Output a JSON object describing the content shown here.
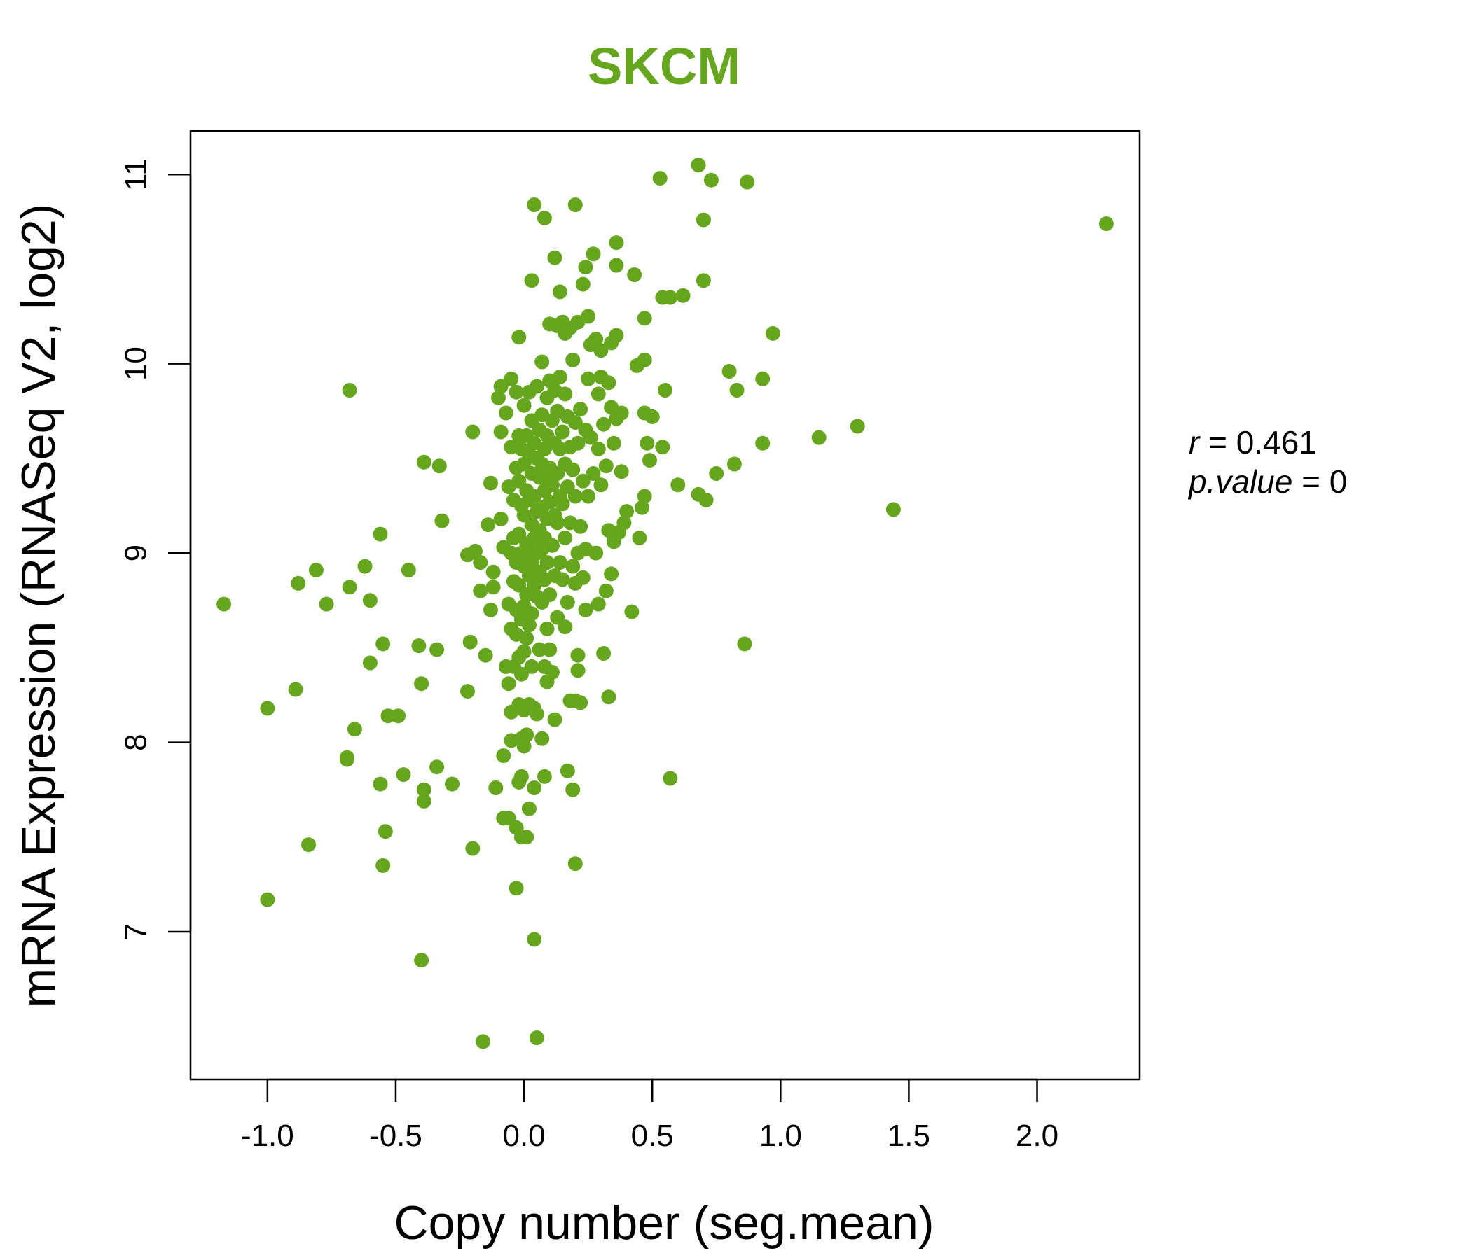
{
  "chart_data": {
    "type": "scatter",
    "title": "SKCM",
    "xlabel": "Copy number (seg.mean)",
    "ylabel": "mRNA Expression (RNASeq V2, log2)",
    "xlim": [
      -1.3,
      2.4
    ],
    "ylim": [
      6.22,
      11.23
    ],
    "x_ticks": [
      -1.0,
      -0.5,
      0.0,
      0.5,
      1.0,
      1.5,
      2.0
    ],
    "x_tick_labels": [
      "-1.0",
      "-0.5",
      "0.0",
      "0.5",
      "1.0",
      "1.5",
      "2.0"
    ],
    "y_ticks": [
      7,
      8,
      9,
      10,
      11
    ],
    "y_tick_labels": [
      "7",
      "8",
      "9",
      "10",
      "11"
    ],
    "stats": {
      "r_label": "r",
      "r_value": "0.461",
      "p_label": "p.value",
      "p_value": "0"
    },
    "color": "#66a61e",
    "points": [
      [
        -1.17,
        8.73
      ],
      [
        -1.0,
        8.18
      ],
      [
        -1.0,
        7.17
      ],
      [
        -0.89,
        8.28
      ],
      [
        -0.88,
        8.84
      ],
      [
        -0.84,
        7.46
      ],
      [
        -0.81,
        8.91
      ],
      [
        -0.77,
        8.73
      ],
      [
        -0.68,
        8.82
      ],
      [
        -0.68,
        9.86
      ],
      [
        -0.69,
        7.92
      ],
      [
        -0.69,
        7.91
      ],
      [
        -0.66,
        8.07
      ],
      [
        -0.62,
        8.93
      ],
      [
        -0.6,
        8.75
      ],
      [
        -0.6,
        8.42
      ],
      [
        -0.56,
        9.1
      ],
      [
        -0.56,
        7.78
      ],
      [
        -0.55,
        8.52
      ],
      [
        -0.55,
        7.35
      ],
      [
        -0.53,
        8.14
      ],
      [
        -0.54,
        7.53
      ],
      [
        -0.49,
        8.14
      ],
      [
        -0.47,
        7.83
      ],
      [
        -0.45,
        8.91
      ],
      [
        -0.41,
        8.51
      ],
      [
        -0.4,
        8.31
      ],
      [
        -0.39,
        9.48
      ],
      [
        -0.39,
        7.75
      ],
      [
        -0.39,
        7.69
      ],
      [
        -0.4,
        6.85
      ],
      [
        -0.34,
        8.49
      ],
      [
        -0.33,
        9.46
      ],
      [
        -0.32,
        9.17
      ],
      [
        -0.34,
        7.87
      ],
      [
        -0.28,
        7.78
      ],
      [
        -0.22,
        8.99
      ],
      [
        -0.22,
        8.27
      ],
      [
        -0.2,
        9.64
      ],
      [
        -0.21,
        8.53
      ],
      [
        -0.19,
        9.01
      ],
      [
        -0.2,
        7.44
      ],
      [
        -0.17,
        8.95
      ],
      [
        -0.17,
        8.8
      ],
      [
        -0.15,
        8.46
      ],
      [
        -0.16,
        6.42
      ],
      [
        -0.14,
        9.15
      ],
      [
        -0.13,
        9.37
      ],
      [
        -0.13,
        8.7
      ],
      [
        -0.12,
        8.9
      ],
      [
        -0.12,
        8.82
      ],
      [
        -0.11,
        7.76
      ],
      [
        -0.1,
        9.82
      ],
      [
        -0.09,
        9.88
      ],
      [
        -0.09,
        9.64
      ],
      [
        -0.09,
        9.18
      ],
      [
        -0.08,
        9.03
      ],
      [
        -0.08,
        7.93
      ],
      [
        -0.08,
        7.6
      ],
      [
        -0.07,
        9.74
      ],
      [
        -0.07,
        8.4
      ],
      [
        -0.06,
        9.35
      ],
      [
        -0.06,
        8.73
      ],
      [
        -0.06,
        7.6
      ],
      [
        -0.06,
        8.31
      ],
      [
        -0.05,
        9.92
      ],
      [
        -0.05,
        9.56
      ],
      [
        -0.05,
        9.0
      ],
      [
        -0.05,
        8.6
      ],
      [
        -0.05,
        8.16
      ],
      [
        -0.05,
        8.01
      ],
      [
        -0.04,
        9.28
      ],
      [
        -0.04,
        9.08
      ],
      [
        -0.04,
        8.85
      ],
      [
        -0.04,
        8.4
      ],
      [
        -0.03,
        9.85
      ],
      [
        -0.03,
        9.45
      ],
      [
        -0.03,
        8.95
      ],
      [
        -0.03,
        8.7
      ],
      [
        -0.03,
        8.57
      ],
      [
        -0.03,
        7.55
      ],
      [
        -0.03,
        7.23
      ],
      [
        -0.02,
        10.14
      ],
      [
        -0.02,
        9.62
      ],
      [
        -0.02,
        9.38
      ],
      [
        -0.02,
        9.1
      ],
      [
        -0.02,
        8.83
      ],
      [
        -0.02,
        8.45
      ],
      [
        -0.02,
        8.2
      ],
      [
        -0.02,
        7.79
      ],
      [
        -0.01,
        9.55
      ],
      [
        -0.01,
        9.25
      ],
      [
        -0.01,
        9.0
      ],
      [
        -0.01,
        8.65
      ],
      [
        -0.01,
        8.36
      ],
      [
        -0.01,
        8.02
      ],
      [
        -0.01,
        7.82
      ],
      [
        -0.01,
        7.5
      ],
      [
        0.0,
        9.78
      ],
      [
        0.0,
        9.47
      ],
      [
        0.0,
        9.2
      ],
      [
        0.0,
        8.93
      ],
      [
        0.0,
        8.72
      ],
      [
        0.0,
        8.48
      ],
      [
        0.0,
        8.17
      ],
      [
        0.0,
        7.98
      ],
      [
        0.01,
        9.62
      ],
      [
        0.01,
        9.33
      ],
      [
        0.01,
        9.05
      ],
      [
        0.01,
        8.78
      ],
      [
        0.01,
        8.55
      ],
      [
        0.01,
        8.04
      ],
      [
        0.01,
        7.5
      ],
      [
        0.02,
        9.85
      ],
      [
        0.02,
        9.52
      ],
      [
        0.02,
        9.28
      ],
      [
        0.02,
        9.02
      ],
      [
        0.02,
        8.88
      ],
      [
        0.02,
        8.62
      ],
      [
        0.02,
        8.2
      ],
      [
        0.02,
        7.65
      ],
      [
        0.03,
        10.44
      ],
      [
        0.03,
        9.7
      ],
      [
        0.03,
        9.42
      ],
      [
        0.03,
        9.15
      ],
      [
        0.03,
        8.95
      ],
      [
        0.03,
        8.68
      ],
      [
        0.03,
        8.4
      ],
      [
        0.04,
        10.84
      ],
      [
        0.04,
        9.58
      ],
      [
        0.04,
        9.3
      ],
      [
        0.04,
        9.08
      ],
      [
        0.04,
        8.83
      ],
      [
        0.04,
        8.18
      ],
      [
        0.04,
        7.76
      ],
      [
        0.04,
        6.96
      ],
      [
        0.05,
        9.88
      ],
      [
        0.05,
        9.5
      ],
      [
        0.05,
        9.22
      ],
      [
        0.05,
        9.0
      ],
      [
        0.05,
        8.77
      ],
      [
        0.05,
        8.15
      ],
      [
        0.05,
        6.44
      ],
      [
        0.06,
        9.65
      ],
      [
        0.06,
        9.4
      ],
      [
        0.06,
        9.12
      ],
      [
        0.06,
        8.9
      ],
      [
        0.06,
        8.49
      ],
      [
        0.07,
        10.01
      ],
      [
        0.07,
        9.73
      ],
      [
        0.07,
        9.47
      ],
      [
        0.07,
        9.24
      ],
      [
        0.07,
        9.02
      ],
      [
        0.07,
        8.74
      ],
      [
        0.07,
        8.02
      ],
      [
        0.08,
        10.77
      ],
      [
        0.08,
        9.55
      ],
      [
        0.08,
        9.33
      ],
      [
        0.08,
        9.08
      ],
      [
        0.08,
        8.86
      ],
      [
        0.08,
        8.4
      ],
      [
        0.08,
        7.82
      ],
      [
        0.09,
        9.82
      ],
      [
        0.09,
        9.62
      ],
      [
        0.09,
        9.38
      ],
      [
        0.09,
        9.18
      ],
      [
        0.09,
        8.95
      ],
      [
        0.09,
        8.6
      ],
      [
        0.09,
        8.32
      ],
      [
        0.1,
        10.21
      ],
      [
        0.1,
        9.91
      ],
      [
        0.1,
        9.45
      ],
      [
        0.1,
        9.27
      ],
      [
        0.1,
        8.78
      ],
      [
        0.1,
        8.49
      ],
      [
        0.11,
        9.7
      ],
      [
        0.11,
        9.36
      ],
      [
        0.11,
        9.04
      ],
      [
        0.11,
        8.37
      ],
      [
        0.12,
        10.56
      ],
      [
        0.12,
        9.86
      ],
      [
        0.12,
        9.58
      ],
      [
        0.12,
        9.2
      ],
      [
        0.12,
        8.88
      ],
      [
        0.12,
        8.12
      ],
      [
        0.13,
        10.2
      ],
      [
        0.13,
        9.75
      ],
      [
        0.13,
        9.42
      ],
      [
        0.13,
        9.16
      ],
      [
        0.13,
        8.66
      ],
      [
        0.14,
        10.38
      ],
      [
        0.14,
        9.93
      ],
      [
        0.14,
        9.55
      ],
      [
        0.14,
        9.3
      ],
      [
        0.14,
        8.95
      ],
      [
        0.15,
        10.22
      ],
      [
        0.15,
        9.64
      ],
      [
        0.15,
        9.26
      ],
      [
        0.15,
        8.86
      ],
      [
        0.16,
        10.16
      ],
      [
        0.16,
        9.84
      ],
      [
        0.16,
        9.47
      ],
      [
        0.16,
        9.08
      ],
      [
        0.16,
        8.61
      ],
      [
        0.17,
        9.72
      ],
      [
        0.17,
        9.35
      ],
      [
        0.17,
        8.74
      ],
      [
        0.17,
        7.85
      ],
      [
        0.18,
        10.19
      ],
      [
        0.18,
        9.56
      ],
      [
        0.18,
        9.16
      ],
      [
        0.18,
        8.22
      ],
      [
        0.19,
        10.02
      ],
      [
        0.19,
        9.44
      ],
      [
        0.19,
        8.93
      ],
      [
        0.19,
        7.75
      ],
      [
        0.2,
        10.84
      ],
      [
        0.2,
        9.69
      ],
      [
        0.2,
        9.3
      ],
      [
        0.2,
        8.84
      ],
      [
        0.2,
        8.22
      ],
      [
        0.2,
        7.36
      ],
      [
        0.21,
        10.22
      ],
      [
        0.21,
        9.58
      ],
      [
        0.21,
        9.0
      ],
      [
        0.21,
        8.46
      ],
      [
        0.21,
        8.38
      ],
      [
        0.22,
        9.76
      ],
      [
        0.22,
        9.14
      ],
      [
        0.22,
        8.21
      ],
      [
        0.23,
        10.42
      ],
      [
        0.23,
        9.38
      ],
      [
        0.23,
        8.87
      ],
      [
        0.24,
        10.51
      ],
      [
        0.24,
        9.65
      ],
      [
        0.24,
        9.02
      ],
      [
        0.24,
        8.7
      ],
      [
        0.25,
        10.25
      ],
      [
        0.25,
        9.92
      ],
      [
        0.25,
        9.3
      ],
      [
        0.26,
        10.1
      ],
      [
        0.26,
        9.61
      ],
      [
        0.27,
        10.58
      ],
      [
        0.27,
        9.42
      ],
      [
        0.28,
        10.13
      ],
      [
        0.28,
        9.0
      ],
      [
        0.29,
        9.84
      ],
      [
        0.29,
        9.55
      ],
      [
        0.29,
        8.73
      ],
      [
        0.3,
        10.07
      ],
      [
        0.3,
        9.93
      ],
      [
        0.3,
        9.36
      ],
      [
        0.31,
        9.68
      ],
      [
        0.31,
        8.47
      ],
      [
        0.32,
        9.46
      ],
      [
        0.32,
        8.8
      ],
      [
        0.33,
        9.9
      ],
      [
        0.33,
        9.12
      ],
      [
        0.33,
        8.24
      ],
      [
        0.34,
        10.11
      ],
      [
        0.34,
        9.77
      ],
      [
        0.34,
        8.89
      ],
      [
        0.35,
        9.58
      ],
      [
        0.35,
        9.06
      ],
      [
        0.36,
        10.64
      ],
      [
        0.36,
        10.52
      ],
      [
        0.36,
        10.15
      ],
      [
        0.36,
        9.71
      ],
      [
        0.37,
        9.11
      ],
      [
        0.38,
        9.43
      ],
      [
        0.38,
        9.74
      ],
      [
        0.39,
        9.16
      ],
      [
        0.4,
        9.22
      ],
      [
        0.42,
        8.69
      ],
      [
        0.43,
        10.47
      ],
      [
        0.44,
        9.99
      ],
      [
        0.45,
        9.08
      ],
      [
        0.46,
        9.24
      ],
      [
        0.47,
        10.24
      ],
      [
        0.47,
        10.02
      ],
      [
        0.47,
        9.74
      ],
      [
        0.47,
        9.3
      ],
      [
        0.48,
        9.58
      ],
      [
        0.49,
        9.49
      ],
      [
        0.5,
        9.72
      ],
      [
        0.53,
        10.98
      ],
      [
        0.54,
        10.35
      ],
      [
        0.54,
        9.56
      ],
      [
        0.55,
        9.86
      ],
      [
        0.57,
        10.35
      ],
      [
        0.57,
        7.81
      ],
      [
        0.6,
        9.36
      ],
      [
        0.62,
        10.36
      ],
      [
        0.68,
        11.05
      ],
      [
        0.68,
        9.31
      ],
      [
        0.7,
        10.76
      ],
      [
        0.7,
        10.44
      ],
      [
        0.71,
        9.28
      ],
      [
        0.73,
        10.97
      ],
      [
        0.75,
        9.42
      ],
      [
        0.8,
        9.96
      ],
      [
        0.82,
        9.47
      ],
      [
        0.83,
        9.86
      ],
      [
        0.86,
        8.52
      ],
      [
        0.87,
        10.96
      ],
      [
        0.93,
        9.92
      ],
      [
        0.93,
        9.58
      ],
      [
        0.97,
        10.16
      ],
      [
        1.15,
        9.61
      ],
      [
        1.3,
        9.67
      ],
      [
        1.44,
        9.23
      ],
      [
        2.27,
        10.74
      ]
    ]
  }
}
